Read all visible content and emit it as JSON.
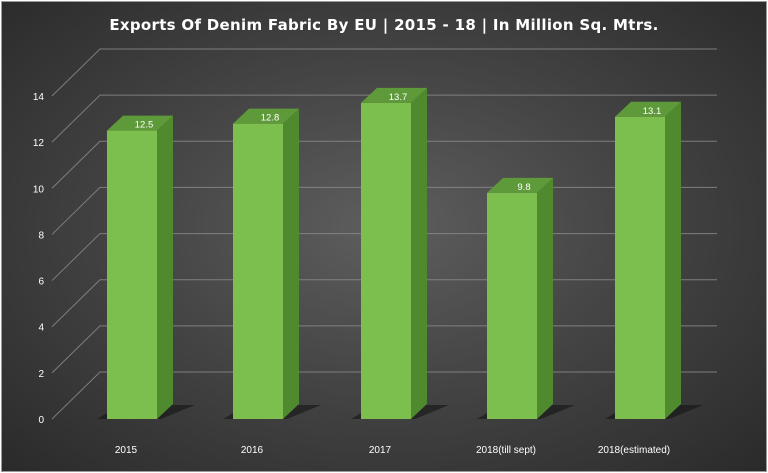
{
  "chart_data": {
    "type": "bar",
    "title": "Exports Of Denim Fabric By EU | 2015 - 18 | In Million Sq. Mtrs.",
    "categories": [
      "2015",
      "2016",
      "2017",
      "2018(till sept)",
      "2018(estimated)"
    ],
    "values": [
      12.5,
      12.8,
      13.7,
      9.8,
      13.1
    ],
    "data_labels": [
      "12.5",
      "12.8",
      "13.7",
      "9.8",
      "13.1"
    ],
    "y_ticks": [
      "0",
      "2",
      "4",
      "6",
      "8",
      "10",
      "12",
      "14"
    ],
    "ylim": [
      0,
      14
    ],
    "xlabel": "",
    "ylabel": "",
    "grid": true,
    "style": "3d-column",
    "colors": {
      "bar_front": "#7dbf4f",
      "bar_side": "#4f8a2e",
      "bar_top": "#5f9a3a",
      "gridline": "#8a8a8a",
      "background": "#3e3e3e",
      "text": "#ffffff"
    }
  }
}
